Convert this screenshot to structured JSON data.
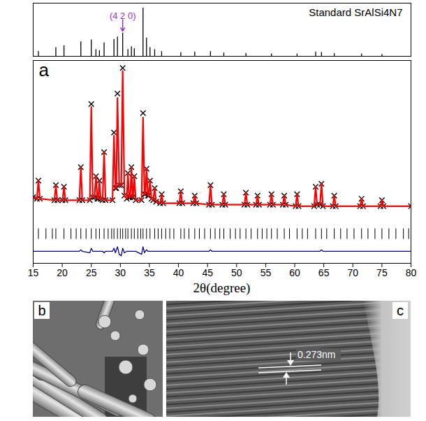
{
  "chart_data": [
    {
      "type": "bar",
      "title": "Standard SrAlSi4N7",
      "color": "#000000",
      "xlim": [
        15,
        80
      ],
      "ylim": [
        0,
        110
      ],
      "tick_labels": false,
      "grid": false,
      "x": [
        15.9,
        18.9,
        20.3,
        23.2,
        25.0,
        25.8,
        26.4,
        27.2,
        28.9,
        29.5,
        30.4,
        31.3,
        31.9,
        32.4,
        33.9,
        34.5,
        35.1,
        35.9,
        37.1,
        40.4,
        42.8,
        45.5,
        47.8,
        51.6,
        56.0,
        60.4,
        63.6,
        64.6,
        66.8,
        71.5,
        75.0
      ],
      "values": [
        10,
        18,
        22,
        30,
        34,
        14,
        12,
        28,
        35,
        40,
        48,
        14,
        20,
        16,
        100,
        38,
        18,
        14,
        10,
        8,
        9,
        10,
        7,
        6,
        5,
        5,
        9,
        8,
        6,
        5,
        4
      ],
      "annotation": {
        "text": "(4 2 0)",
        "x": 30.4,
        "color": "#9933cc"
      }
    },
    {
      "type": "line",
      "label": "a",
      "x_label": "2θ(degree)",
      "xlim": [
        15,
        80
      ],
      "xticks": [
        15,
        20,
        25,
        30,
        35,
        40,
        45,
        50,
        55,
        60,
        65,
        70,
        75,
        80
      ],
      "ylim": [
        -30,
        105
      ],
      "tick_labels": "x",
      "grid": false,
      "x": [
        15,
        15.65,
        15.9,
        16.15,
        18.65,
        18.9,
        19.15,
        20.05,
        20.3,
        20.55,
        22.95,
        23.2,
        23.45,
        24.75,
        25.0,
        25.25,
        25.55,
        25.8,
        26.05,
        26.2,
        26.4,
        26.6,
        26.95,
        27.2,
        27.45,
        28.65,
        28.9,
        29.15,
        29.3,
        29.5,
        29.8,
        30.15,
        30.4,
        30.7,
        31.1,
        31.3,
        31.5,
        31.7,
        31.9,
        32.1,
        32.2,
        32.4,
        32.65,
        33.65,
        33.9,
        34.15,
        34.3,
        34.5,
        34.75,
        34.9,
        35.1,
        35.35,
        35.65,
        35.9,
        36.15,
        36.85,
        37.1,
        37.35,
        40.15,
        40.4,
        40.65,
        42.55,
        42.8,
        43.05,
        45.25,
        45.5,
        45.75,
        47.55,
        47.8,
        48.05,
        51.35,
        51.6,
        51.85,
        53.35,
        53.6,
        53.85,
        55.75,
        56.0,
        56.25,
        57.95,
        58.2,
        58.45,
        60.15,
        60.4,
        60.65,
        63.35,
        63.6,
        63.85,
        64.35,
        64.6,
        64.85,
        66.55,
        66.8,
        67.05,
        71.25,
        71.5,
        71.75,
        74.75,
        75.0,
        75.25,
        80
      ],
      "series": [
        {
          "type": "scatter",
          "marker": "x",
          "color": "#000000",
          "values": [
            14,
            13,
            25,
            13,
            12,
            22,
            12,
            12,
            21,
            12,
            12,
            34,
            12,
            12,
            76,
            14,
            14,
            28,
            13,
            13,
            25,
            13,
            12,
            44,
            12,
            12,
            57,
            20,
            20,
            83,
            22,
            22,
            100,
            15,
            13,
            30,
            14,
            14,
            34,
            14,
            14,
            28,
            12,
            12,
            70,
            16,
            16,
            33,
            15,
            15,
            25,
            13,
            12,
            20,
            11,
            10,
            16,
            10,
            10,
            18,
            10,
            10,
            15,
            10,
            9,
            22,
            9,
            9,
            16,
            9,
            9,
            17,
            9,
            9,
            15,
            9,
            9,
            16,
            9,
            9,
            15,
            9,
            8,
            16,
            8,
            8,
            21,
            9,
            9,
            23,
            8,
            8,
            15,
            8,
            8,
            13,
            8,
            8,
            12,
            8,
            8
          ]
        },
        {
          "type": "line",
          "color": "#ff0000",
          "values": [
            14,
            13,
            25,
            13,
            12,
            22,
            12,
            12,
            21,
            12,
            12,
            34,
            12,
            12,
            74,
            14,
            14,
            28,
            13,
            13,
            25,
            13,
            12,
            44,
            12,
            12,
            55,
            20,
            20,
            80,
            22,
            22,
            98,
            15,
            13,
            30,
            14,
            14,
            34,
            14,
            14,
            28,
            12,
            12,
            67,
            16,
            16,
            33,
            15,
            15,
            25,
            13,
            12,
            20,
            11,
            10,
            16,
            10,
            10,
            18,
            10,
            10,
            15,
            10,
            9,
            22,
            9,
            9,
            16,
            9,
            9,
            17,
            9,
            9,
            15,
            9,
            9,
            16,
            9,
            9,
            15,
            9,
            8,
            16,
            8,
            8,
            21,
            9,
            9,
            23,
            8,
            8,
            15,
            8,
            8,
            13,
            8,
            8,
            12,
            8,
            8
          ]
        },
        {
          "type": "line",
          "color": "#00008b",
          "values": [
            -22,
            -22,
            -22,
            -22,
            -22,
            -22,
            -22,
            -22,
            -22,
            -22,
            -22,
            -21,
            -22,
            -23,
            -20,
            -22,
            -22,
            -22,
            -22,
            -22,
            -22,
            -22,
            -22,
            -23,
            -22,
            -22,
            -20,
            -23,
            -21,
            -19,
            -24,
            -25,
            -20,
            -23,
            -22,
            -22,
            -22,
            -22,
            -22,
            -22,
            -22,
            -22,
            -22,
            -24,
            -19,
            -23,
            -22,
            -21,
            -22,
            -22,
            -22,
            -22,
            -22,
            -22,
            -22,
            -22,
            -22,
            -22,
            -22,
            -22,
            -22,
            -22,
            -22,
            -22,
            -22,
            -21,
            -22,
            -22,
            -22,
            -22,
            -22,
            -22,
            -22,
            -22,
            -22,
            -22,
            -22,
            -22,
            -22,
            -22,
            -22,
            -22,
            -22,
            -22,
            -22,
            -22,
            -22,
            -22,
            -22,
            -21,
            -22,
            -22,
            -22,
            -22,
            -22,
            -22,
            -22,
            -22,
            -22,
            -22,
            -22
          ]
        }
      ],
      "reflections": {
        "color": "#000000",
        "x": [
          15.9,
          17.2,
          18.3,
          18.9,
          20.3,
          21.5,
          22.4,
          23.2,
          24.1,
          25.0,
          25.8,
          26.4,
          27.2,
          27.9,
          28.5,
          28.9,
          29.5,
          30.0,
          30.4,
          30.9,
          31.3,
          31.9,
          32.4,
          33.0,
          33.5,
          33.9,
          34.5,
          35.1,
          35.9,
          36.5,
          37.1,
          37.8,
          38.5,
          39.2,
          40.4,
          41.0,
          41.8,
          42.8,
          43.6,
          44.5,
          45.5,
          46.3,
          47.1,
          47.8,
          48.9,
          49.8,
          50.6,
          51.6,
          52.5,
          53.6,
          54.4,
          55.2,
          56.0,
          57.0,
          58.2,
          59.1,
          60.4,
          61.3,
          62.2,
          63.6,
          64.6,
          65.5,
          66.8,
          67.9,
          69.0,
          70.2,
          71.5,
          72.6,
          73.8,
          75.0,
          76.2,
          77.4,
          78.7,
          79.6
        ]
      }
    }
  ],
  "images": [
    {
      "label": "b"
    },
    {
      "label": "c",
      "annotation": "0.273nm"
    }
  ]
}
